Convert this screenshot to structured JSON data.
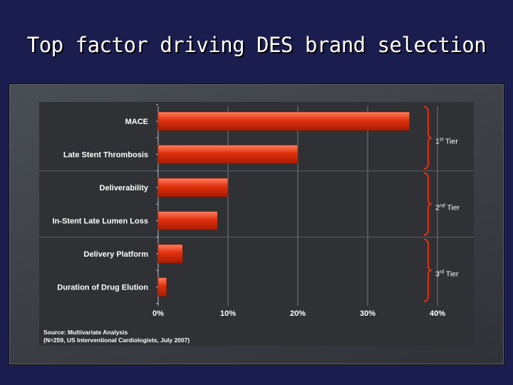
{
  "slide": {
    "title": "Top factor driving DES brand selection"
  },
  "colors": {
    "background": "#1c1d4f",
    "bar": "#e0300c",
    "bar_highlight": "#ff8060",
    "panel": "#303134",
    "text": "#ffffff"
  },
  "chart_data": {
    "type": "bar",
    "orientation": "horizontal",
    "categories": [
      "MACE",
      "Late Stent Thrombosis",
      "Deliverability",
      "In-Stent Late Lumen Loss",
      "Delivery Platform",
      "Duration of Drug Elution"
    ],
    "values": [
      36,
      20,
      10,
      8.5,
      3.5,
      1.2
    ],
    "xlim": [
      0,
      40
    ],
    "xticks": [
      0,
      10,
      20,
      30,
      40
    ],
    "xtick_labels": [
      "0%",
      "10%",
      "20%",
      "30%",
      "40%"
    ],
    "grid": true,
    "tiers": [
      {
        "base": "1",
        "sup": "st",
        "word": "Tier",
        "categories": [
          "MACE",
          "Late Stent Thrombosis"
        ]
      },
      {
        "base": "2",
        "sup": "nd",
        "word": "Tier",
        "categories": [
          "Deliverability",
          "In-Stent Late Lumen Loss"
        ]
      },
      {
        "base": "3",
        "sup": "rd",
        "word": "Tier",
        "categories": [
          "Delivery Platform",
          "Duration of Drug Elution"
        ]
      }
    ],
    "source_line1": "Source: Multivariate Analysis",
    "source_line2": "(N=259, US Interventional Cardiologists, July 2007)"
  }
}
